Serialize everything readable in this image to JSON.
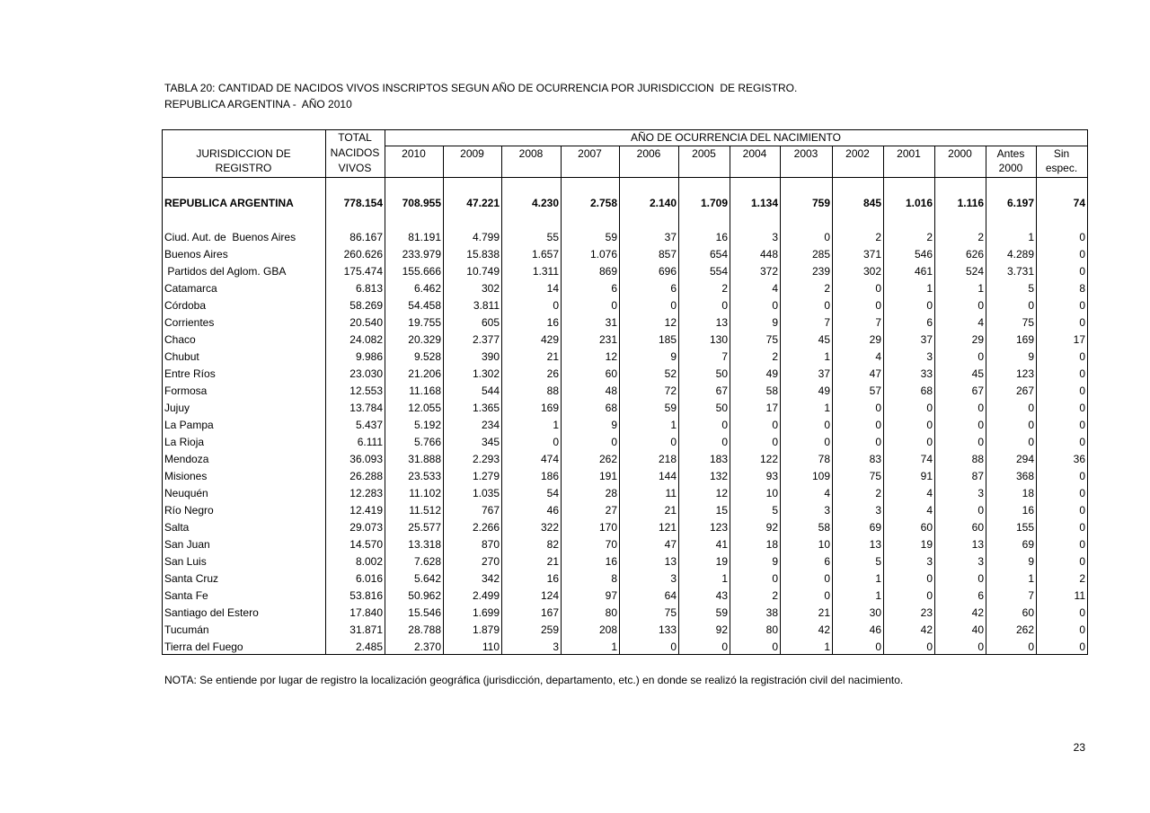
{
  "header": {
    "title": "TABLA 20: CANTIDAD DE NACIDOS VIVOS INSCRIPTOS SEGUN AÑO DE OCURRENCIA POR JURISDICCION  DE REGISTRO.",
    "subtitle": "REPUBLICA ARGENTINA -  AÑO 2010"
  },
  "table": {
    "jurisdiction_header": [
      "JURISDICCION DE",
      "REGISTRO"
    ],
    "total_header": [
      "TOTAL",
      "NACIDOS",
      "VIVOS"
    ],
    "year_group_header": "AÑO DE OCURRENCIA DEL NACIMIENTO",
    "year_columns": [
      [
        "2010"
      ],
      [
        "2009"
      ],
      [
        "2008"
      ],
      [
        "2007"
      ],
      [
        "2006"
      ],
      [
        "2005"
      ],
      [
        "2004"
      ],
      [
        "2003"
      ],
      [
        "2002"
      ],
      [
        "2001"
      ],
      [
        "2000"
      ],
      [
        "Antes",
        "2000"
      ],
      [
        "Sin",
        "espec."
      ]
    ],
    "total_row": {
      "name": "REPUBLICA ARGENTINA",
      "cells": [
        "778.154",
        "708.955",
        "47.221",
        "4.230",
        "2.758",
        "2.140",
        "1.709",
        "1.134",
        "759",
        "845",
        "1.016",
        "1.116",
        "6.197",
        "74"
      ]
    },
    "rows": [
      {
        "name": "Ciud. Aut. de  Buenos Aires",
        "cells": [
          "86.167",
          "81.191",
          "4.799",
          "55",
          "59",
          "37",
          "16",
          "3",
          "0",
          "2",
          "2",
          "2",
          "1",
          "0"
        ]
      },
      {
        "name": "Buenos Aires",
        "cells": [
          "260.626",
          "233.979",
          "15.838",
          "1.657",
          "1.076",
          "857",
          "654",
          "448",
          "285",
          "371",
          "546",
          "626",
          "4.289",
          "0"
        ]
      },
      {
        "name": " Partidos del Aglom. GBA",
        "cells": [
          "175.474",
          "155.666",
          "10.749",
          "1.311",
          "869",
          "696",
          "554",
          "372",
          "239",
          "302",
          "461",
          "524",
          "3.731",
          "0"
        ]
      },
      {
        "name": "Catamarca",
        "cells": [
          "6.813",
          "6.462",
          "302",
          "14",
          "6",
          "6",
          "2",
          "4",
          "2",
          "0",
          "1",
          "1",
          "5",
          "8"
        ]
      },
      {
        "name": "Córdoba",
        "cells": [
          "58.269",
          "54.458",
          "3.811",
          "0",
          "0",
          "0",
          "0",
          "0",
          "0",
          "0",
          "0",
          "0",
          "0",
          "0"
        ]
      },
      {
        "name": "Corrientes",
        "cells": [
          "20.540",
          "19.755",
          "605",
          "16",
          "31",
          "12",
          "13",
          "9",
          "7",
          "7",
          "6",
          "4",
          "75",
          "0"
        ]
      },
      {
        "name": "Chaco",
        "cells": [
          "24.082",
          "20.329",
          "2.377",
          "429",
          "231",
          "185",
          "130",
          "75",
          "45",
          "29",
          "37",
          "29",
          "169",
          "17"
        ]
      },
      {
        "name": "Chubut",
        "cells": [
          "9.986",
          "9.528",
          "390",
          "21",
          "12",
          "9",
          "7",
          "2",
          "1",
          "4",
          "3",
          "0",
          "9",
          "0"
        ]
      },
      {
        "name": "Entre Ríos",
        "cells": [
          "23.030",
          "21.206",
          "1.302",
          "26",
          "60",
          "52",
          "50",
          "49",
          "37",
          "47",
          "33",
          "45",
          "123",
          "0"
        ]
      },
      {
        "name": "Formosa",
        "cells": [
          "12.553",
          "11.168",
          "544",
          "88",
          "48",
          "72",
          "67",
          "58",
          "49",
          "57",
          "68",
          "67",
          "267",
          "0"
        ]
      },
      {
        "name": "Jujuy",
        "cells": [
          "13.784",
          "12.055",
          "1.365",
          "169",
          "68",
          "59",
          "50",
          "17",
          "1",
          "0",
          "0",
          "0",
          "0",
          "0"
        ]
      },
      {
        "name": "La Pampa",
        "cells": [
          "5.437",
          "5.192",
          "234",
          "1",
          "9",
          "1",
          "0",
          "0",
          "0",
          "0",
          "0",
          "0",
          "0",
          "0"
        ]
      },
      {
        "name": "La Rioja",
        "cells": [
          "6.111",
          "5.766",
          "345",
          "0",
          "0",
          "0",
          "0",
          "0",
          "0",
          "0",
          "0",
          "0",
          "0",
          "0"
        ]
      },
      {
        "name": "Mendoza",
        "cells": [
          "36.093",
          "31.888",
          "2.293",
          "474",
          "262",
          "218",
          "183",
          "122",
          "78",
          "83",
          "74",
          "88",
          "294",
          "36"
        ]
      },
      {
        "name": "Misiones",
        "cells": [
          "26.288",
          "23.533",
          "1.279",
          "186",
          "191",
          "144",
          "132",
          "93",
          "109",
          "75",
          "91",
          "87",
          "368",
          "0"
        ]
      },
      {
        "name": "Neuquén",
        "cells": [
          "12.283",
          "11.102",
          "1.035",
          "54",
          "28",
          "11",
          "12",
          "10",
          "4",
          "2",
          "4",
          "3",
          "18",
          "0"
        ]
      },
      {
        "name": "Río Negro",
        "cells": [
          "12.419",
          "11.512",
          "767",
          "46",
          "27",
          "21",
          "15",
          "5",
          "3",
          "3",
          "4",
          "0",
          "16",
          "0"
        ]
      },
      {
        "name": "Salta",
        "cells": [
          "29.073",
          "25.577",
          "2.266",
          "322",
          "170",
          "121",
          "123",
          "92",
          "58",
          "69",
          "60",
          "60",
          "155",
          "0"
        ]
      },
      {
        "name": "San Juan",
        "cells": [
          "14.570",
          "13.318",
          "870",
          "82",
          "70",
          "47",
          "41",
          "18",
          "10",
          "13",
          "19",
          "13",
          "69",
          "0"
        ]
      },
      {
        "name": "San Luis",
        "cells": [
          "8.002",
          "7.628",
          "270",
          "21",
          "16",
          "13",
          "19",
          "9",
          "6",
          "5",
          "3",
          "3",
          "9",
          "0"
        ]
      },
      {
        "name": "Santa Cruz",
        "cells": [
          "6.016",
          "5.642",
          "342",
          "16",
          "8",
          "3",
          "1",
          "0",
          "0",
          "1",
          "0",
          "0",
          "1",
          "2"
        ]
      },
      {
        "name": "Santa Fe",
        "cells": [
          "53.816",
          "50.962",
          "2.499",
          "124",
          "97",
          "64",
          "43",
          "2",
          "0",
          "1",
          "0",
          "6",
          "7",
          "11"
        ]
      },
      {
        "name": "Santiago del Estero",
        "cells": [
          "17.840",
          "15.546",
          "1.699",
          "167",
          "80",
          "75",
          "59",
          "38",
          "21",
          "30",
          "23",
          "42",
          "60",
          "0"
        ]
      },
      {
        "name": "Tucumán",
        "cells": [
          "31.871",
          "28.788",
          "1.879",
          "259",
          "208",
          "133",
          "92",
          "80",
          "42",
          "46",
          "42",
          "40",
          "262",
          "0"
        ]
      },
      {
        "name": "Tierra del Fuego",
        "cells": [
          "2.485",
          "2.370",
          "110",
          "3",
          "1",
          "0",
          "0",
          "0",
          "1",
          "0",
          "0",
          "0",
          "0",
          "0"
        ]
      }
    ]
  },
  "note": "NOTA: Se entiende por lugar de registro la localización geográfica (jurisdicción, departamento, etc.) en donde se realizó la registración civil del nacimiento.",
  "page_number": "23"
}
